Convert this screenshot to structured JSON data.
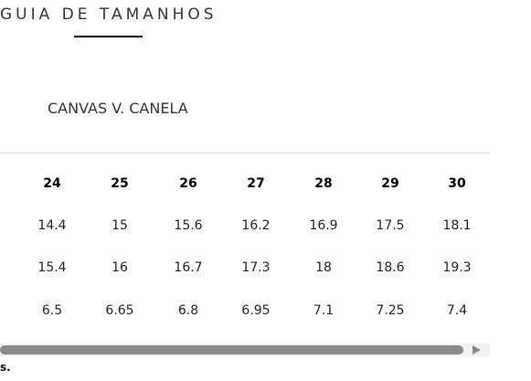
{
  "header": {
    "title": "GUIA DE TAMANHOS",
    "subtitle": "CANVAS V. CANELA"
  },
  "table": {
    "columns": [
      24,
      25,
      26,
      27,
      28,
      29,
      30
    ],
    "rows": [
      [
        14.4,
        15,
        15.6,
        16.2,
        16.9,
        17.5,
        18.1
      ],
      [
        15.4,
        16,
        16.7,
        17.3,
        18,
        18.6,
        19.3
      ],
      [
        6.5,
        6.65,
        6.8,
        6.95,
        7.1,
        7.25,
        7.4
      ]
    ]
  },
  "footer": {
    "text": "s."
  }
}
